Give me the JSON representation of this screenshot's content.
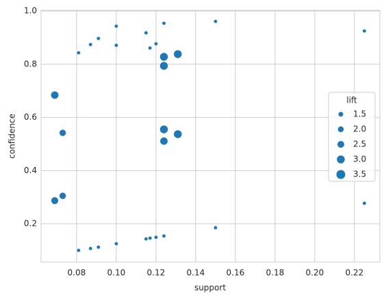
{
  "chart_data": {
    "type": "scatter",
    "x_label": "support",
    "y_label": "confidence",
    "color": "#1f77b4",
    "grid": true,
    "xlim": [
      0.0621,
      0.2328
    ],
    "ylim": [
      0.056,
      1.003
    ],
    "xticks": [
      0.08,
      {
        "value": 0.1,
        "label": "0.10"
      },
      0.12,
      0.14,
      0.16,
      0.18,
      {
        "value": 0.2,
        "label": "0.20"
      },
      0.22
    ],
    "yticks": [
      0.2,
      0.4,
      0.6,
      0.8,
      {
        "value": 1.0,
        "label": "1.0"
      }
    ],
    "legend": {
      "title": "lift",
      "position": "right",
      "sizes": [
        1.5,
        {
          "value": 2.0,
          "label": "2.0"
        },
        2.5,
        {
          "value": 3.0,
          "label": "3.0"
        },
        3.5
      ]
    },
    "x": [
      0.081,
      0.087,
      0.091,
      0.1,
      0.1,
      0.115,
      0.117,
      0.12,
      0.124,
      0.15,
      0.225,
      0.124,
      0.131,
      0.124,
      0.069,
      0.073,
      0.124,
      0.131,
      0.124,
      0.069,
      0.073,
      0.225,
      0.15,
      0.081,
      0.087,
      0.091,
      0.1,
      0.115,
      0.117,
      0.12,
      0.124
    ],
    "y": [
      0.843,
      0.874,
      0.897,
      0.943,
      0.871,
      0.918,
      0.861,
      0.877,
      0.954,
      0.961,
      0.925,
      0.828,
      0.838,
      0.794,
      0.684,
      0.542,
      0.555,
      0.537,
      0.511,
      0.287,
      0.305,
      0.277,
      0.185,
      0.1,
      0.107,
      0.112,
      0.125,
      0.143,
      0.146,
      0.149,
      0.154
    ],
    "sizes": [
      1.0,
      1.0,
      1.0,
      1.0,
      1.0,
      1.0,
      1.0,
      1.0,
      1.0,
      1.0,
      1.0,
      3.2,
      3.2,
      3.2,
      3.0,
      2.5,
      3.2,
      3.2,
      3.0,
      2.8,
      2.5,
      1.0,
      1.0,
      1.0,
      1.0,
      1.0,
      1.0,
      1.0,
      1.0,
      1.0,
      1.0
    ]
  }
}
